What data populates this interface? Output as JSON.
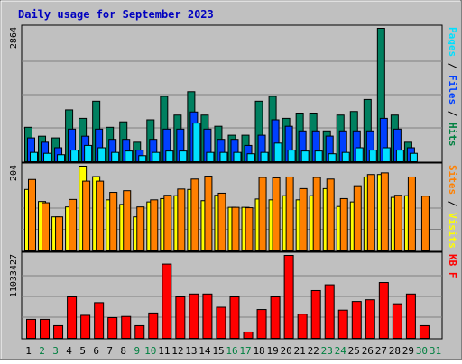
{
  "chart_data": [
    {
      "type": "bar",
      "title": "Daily usage for September 2023",
      "panel": "top",
      "ylabel_parts": [
        {
          "text": "Pages",
          "color": "#00e0ff"
        },
        {
          "text": " / ",
          "color": "#000000"
        },
        {
          "text": "Files",
          "color": "#0040ff"
        },
        {
          "text": " / ",
          "color": "#000000"
        },
        {
          "text": "Hits",
          "color": "#008040"
        }
      ],
      "ytick": "2864",
      "ylim": [
        0,
        2864
      ],
      "categories": [
        "1",
        "2",
        "3",
        "4",
        "5",
        "6",
        "7",
        "8",
        "9",
        "10",
        "11",
        "12",
        "13",
        "14",
        "15",
        "16",
        "17",
        "18",
        "19",
        "20",
        "21",
        "22",
        "23",
        "24",
        "25",
        "26",
        "27",
        "28",
        "29",
        "30",
        "31"
      ],
      "series": [
        {
          "name": "Hits",
          "color": "#008060",
          "values": [
            739,
            548,
            511,
            1114,
            931,
            1300,
            739,
            857,
            419,
            900,
            1404,
            1002,
            1504,
            1002,
            761,
            569,
            569,
            1300,
            1404,
            931,
            1045,
            1045,
            662,
            1002,
            1079,
            1337,
            2864,
            1002,
            419,
            0,
            0
          ]
        },
        {
          "name": "Files",
          "color": "#0040ff",
          "values": [
            511,
            419,
            300,
            700,
            548,
            700,
            480,
            480,
            250,
            480,
            700,
            700,
            1069,
            700,
            480,
            480,
            350,
            569,
            900,
            761,
            662,
            662,
            550,
            662,
            662,
            662,
            931,
            700,
            300,
            0,
            0
          ]
        },
        {
          "name": "Pages",
          "color": "#00e0ff",
          "values": [
            200,
            180,
            150,
            250,
            350,
            300,
            200,
            230,
            130,
            200,
            230,
            230,
            830,
            200,
            200,
            200,
            170,
            200,
            400,
            250,
            230,
            230,
            170,
            200,
            300,
            250,
            300,
            250,
            180,
            0,
            0
          ]
        }
      ]
    },
    {
      "type": "bar",
      "panel": "middle",
      "ylabel_parts": [
        {
          "text": "Sites",
          "color": "#ff8000"
        },
        {
          "text": " / ",
          "color": "#000000"
        },
        {
          "text": "Visits",
          "color": "#ffff00"
        }
      ],
      "ytick": "204",
      "ylim": [
        0,
        204
      ],
      "series": [
        {
          "name": "Visits",
          "color": "#ffff00",
          "values": [
            148,
            119,
            82,
            106,
            204,
            179,
            123,
            112,
            82,
            118,
            126,
            133,
            148,
            121,
            134,
            105,
            105,
            125,
            123,
            133,
            123,
            133,
            150,
            107,
            118,
            178,
            184,
            129,
            133,
            0,
            0
          ]
        },
        {
          "name": "Sites",
          "color": "#ff8000",
          "values": [
            172,
            116,
            82,
            124,
            168,
            168,
            141,
            145,
            106,
            123,
            134,
            149,
            173,
            180,
            139,
            105,
            104,
            177,
            176,
            178,
            150,
            177,
            173,
            126,
            157,
            184,
            188,
            134,
            178,
            132,
            0
          ]
        }
      ]
    },
    {
      "type": "bar",
      "panel": "bottom",
      "ylabel_parts": [
        {
          "text": "KB F",
          "color": "#ff0000"
        }
      ],
      "ytick": "11033427",
      "ylim": [
        0,
        14400000
      ],
      "series": [
        {
          "name": "KB F",
          "color": "#ff0000",
          "values": [
            3300000,
            3300000,
            2200000,
            7200000,
            4000000,
            6200000,
            3600000,
            3800000,
            2200000,
            4400000,
            12900000,
            7200000,
            7700000,
            7700000,
            5400000,
            7200000,
            1100000,
            5000000,
            7200000,
            14400000,
            4200000,
            8300000,
            9300000,
            4900000,
            6400000,
            6700000,
            9700000,
            6000000,
            7700000,
            2200000,
            0
          ]
        }
      ]
    }
  ],
  "x_label_colors": {
    "weekday": "#000000",
    "weekend": "#008040"
  },
  "weekend_days": [
    "2",
    "3",
    "9",
    "10",
    "16",
    "17",
    "23",
    "24",
    "30",
    "31"
  ]
}
